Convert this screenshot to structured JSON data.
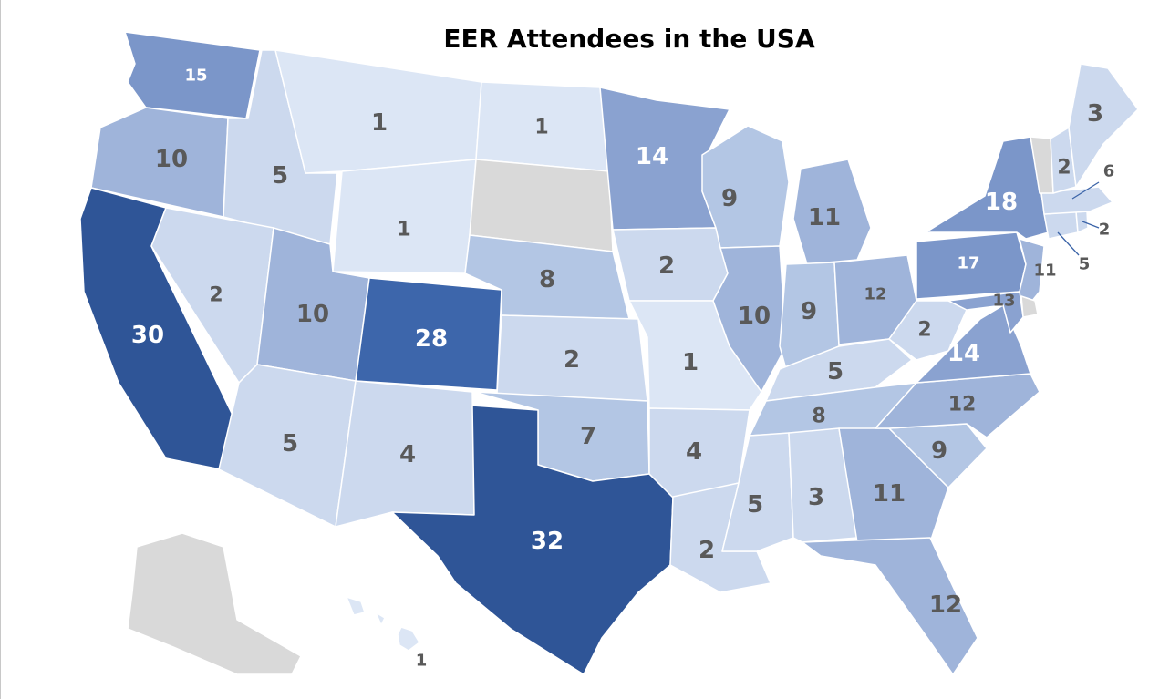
{
  "title": "EER Attendees in the USA",
  "colors": {
    "scale": [
      "#dce6f5",
      "#ccd9ee",
      "#b3c6e4",
      "#9fb4da",
      "#8aa2d0",
      "#7b96c9",
      "#3d66ab",
      "#2f5597"
    ],
    "no_data": "#d9d9d9",
    "label_dark": "#595959",
    "label_light": "#ffffff"
  },
  "chart_data": {
    "type": "choropleth",
    "title": "EER Attendees in the USA",
    "unit": "attendees",
    "states": [
      {
        "state": "Washington",
        "value": 15
      },
      {
        "state": "Oregon",
        "value": 10
      },
      {
        "state": "California",
        "value": 30
      },
      {
        "state": "Idaho",
        "value": 5
      },
      {
        "state": "Nevada",
        "value": 2
      },
      {
        "state": "Montana",
        "value": 1
      },
      {
        "state": "Wyoming",
        "value": 1
      },
      {
        "state": "Utah",
        "value": 10
      },
      {
        "state": "Arizona",
        "value": 5
      },
      {
        "state": "Colorado",
        "value": 28
      },
      {
        "state": "New Mexico",
        "value": 4
      },
      {
        "state": "North Dakota",
        "value": 1
      },
      {
        "state": "South Dakota",
        "value": null
      },
      {
        "state": "Nebraska",
        "value": 8
      },
      {
        "state": "Kansas",
        "value": 2
      },
      {
        "state": "Oklahoma",
        "value": 7
      },
      {
        "state": "Texas",
        "value": 32
      },
      {
        "state": "Minnesota",
        "value": 14
      },
      {
        "state": "Iowa",
        "value": 2
      },
      {
        "state": "Missouri",
        "value": 1
      },
      {
        "state": "Arkansas",
        "value": 4
      },
      {
        "state": "Louisiana",
        "value": 2
      },
      {
        "state": "Wisconsin",
        "value": 9
      },
      {
        "state": "Illinois",
        "value": 10
      },
      {
        "state": "Michigan",
        "value": 11
      },
      {
        "state": "Indiana",
        "value": 9
      },
      {
        "state": "Ohio",
        "value": 12
      },
      {
        "state": "Kentucky",
        "value": 5
      },
      {
        "state": "Tennessee",
        "value": 8
      },
      {
        "state": "Mississippi",
        "value": 5
      },
      {
        "state": "Alabama",
        "value": 3
      },
      {
        "state": "Georgia",
        "value": 11
      },
      {
        "state": "Florida",
        "value": 12
      },
      {
        "state": "South Carolina",
        "value": 9
      },
      {
        "state": "North Carolina",
        "value": 12
      },
      {
        "state": "Virginia",
        "value": 14
      },
      {
        "state": "West Virginia",
        "value": 2
      },
      {
        "state": "Pennsylvania",
        "value": 17
      },
      {
        "state": "New York",
        "value": 18
      },
      {
        "state": "New Jersey",
        "value": 11
      },
      {
        "state": "Delaware",
        "value": null
      },
      {
        "state": "Maryland",
        "value": 13
      },
      {
        "state": "Connecticut",
        "value": 5
      },
      {
        "state": "Rhode Island",
        "value": 2
      },
      {
        "state": "Massachusetts",
        "value": 6
      },
      {
        "state": "Vermont",
        "value": null
      },
      {
        "state": "New Hampshire",
        "value": 2
      },
      {
        "state": "Maine",
        "value": 3
      },
      {
        "state": "Alaska",
        "value": null
      },
      {
        "state": "Hawaii",
        "value": 1
      }
    ]
  }
}
